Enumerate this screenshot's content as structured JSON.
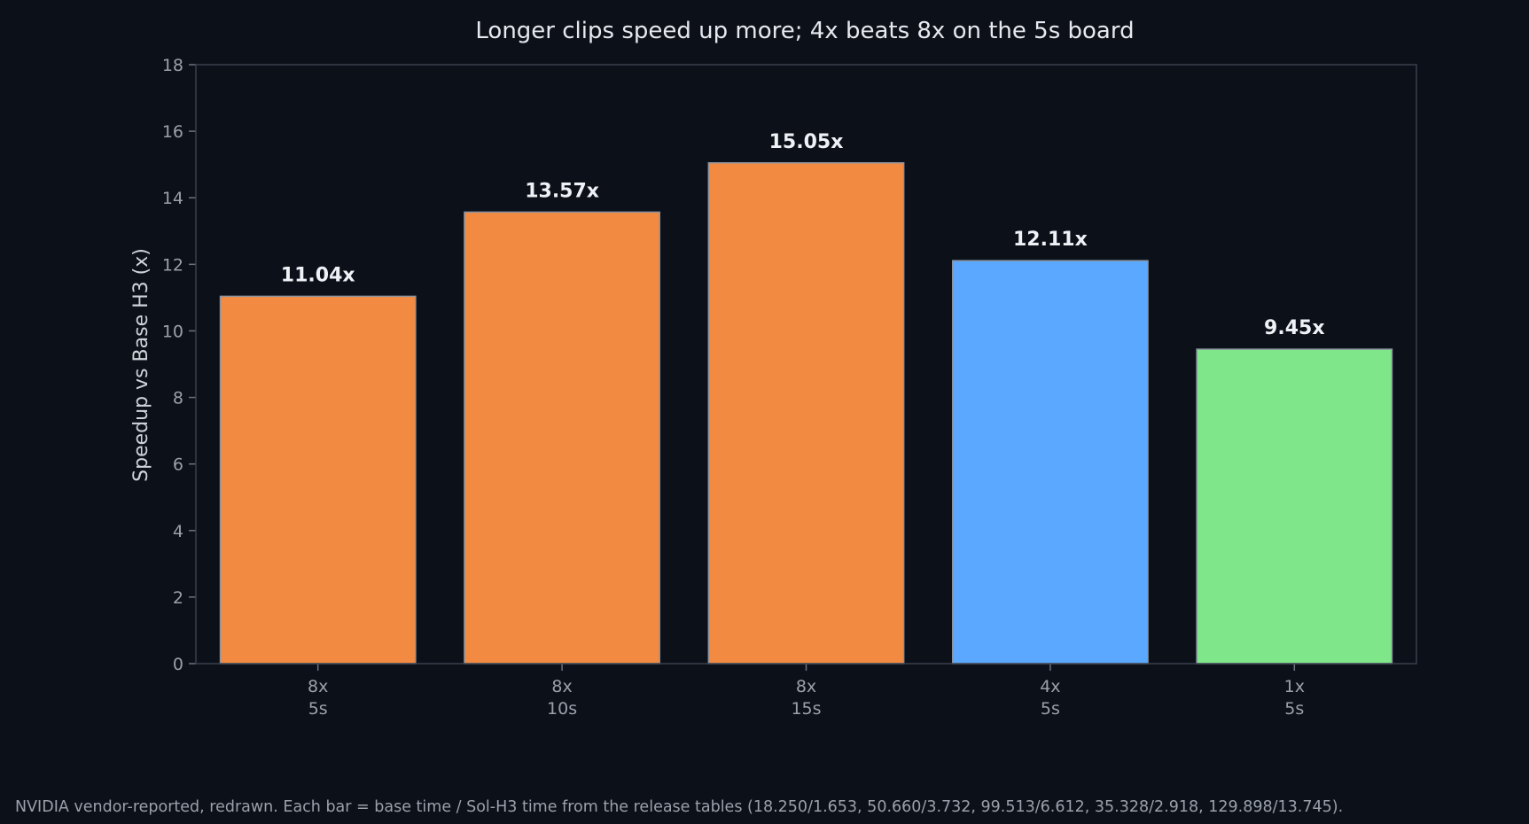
{
  "chart_data": {
    "type": "bar",
    "title": "Longer clips speed up more; 4x beats 8x on the 5s board",
    "ylabel": "Speedup vs Base H3 (x)",
    "xlabel": "",
    "ylim": [
      0,
      18
    ],
    "yticks": [
      0,
      2,
      4,
      6,
      8,
      10,
      12,
      14,
      16,
      18
    ],
    "grid": false,
    "categories": [
      {
        "line1": "8x",
        "line2": "5s"
      },
      {
        "line1": "8x",
        "line2": "10s"
      },
      {
        "line1": "8x",
        "line2": "15s"
      },
      {
        "line1": "4x",
        "line2": "5s"
      },
      {
        "line1": "1x",
        "line2": "5s"
      }
    ],
    "values": [
      11.04,
      13.57,
      15.05,
      12.11,
      9.45
    ],
    "value_labels": [
      "11.04x",
      "13.57x",
      "15.05x",
      "12.11x",
      "9.45x"
    ],
    "colors": [
      "#f28a42",
      "#f28a42",
      "#f28a42",
      "#5aa8ff",
      "#7fe68a"
    ],
    "bar_edge_color": "#8a93a0"
  },
  "footnote": "NVIDIA vendor-reported, redrawn. Each bar = base time / Sol-H3 time from the release tables (18.250/1.653, 50.660/3.732, 99.513/6.612, 35.328/2.918, 129.898/13.745)."
}
